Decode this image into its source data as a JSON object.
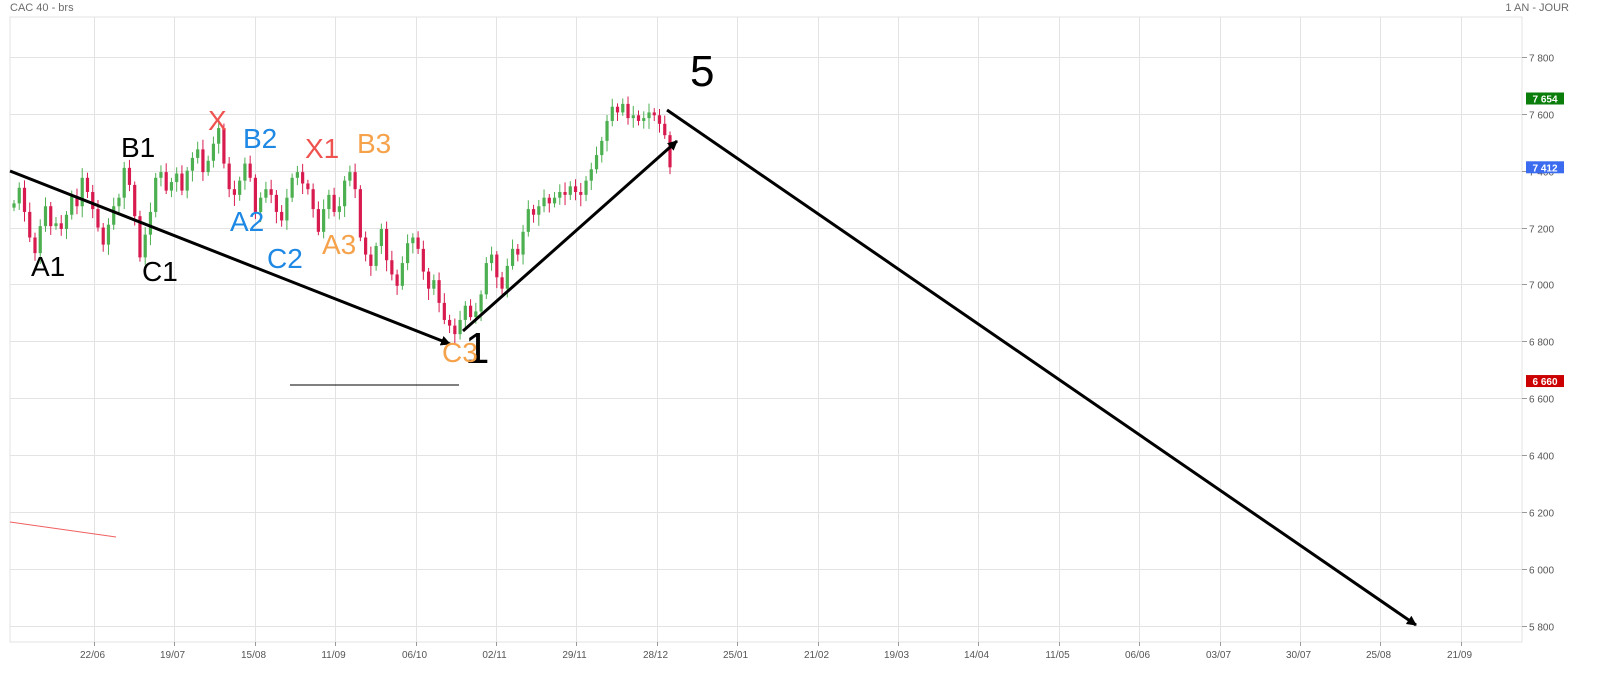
{
  "header": {
    "instrument": "CAC 40 - brs",
    "period": "1 AN - JOUR"
  },
  "chart_data": {
    "type": "candlestick",
    "title": "CAC 40 - brs",
    "period": "1 AN - JOUR",
    "grid": true,
    "ylim": [
      5750,
      7950
    ],
    "y_ticks": [
      5800,
      6000,
      6200,
      6400,
      6600,
      6800,
      7000,
      7200,
      7400,
      7600,
      7800
    ],
    "y_tick_labels": [
      "5 800",
      "6 000",
      "6 200",
      "6 400",
      "6 600",
      "6 800",
      "7 000",
      "7 200",
      "7 400",
      "7 600",
      "7 800"
    ],
    "x_tick_labels": [
      "22/06",
      "19/07",
      "15/08",
      "11/09",
      "06/10",
      "02/11",
      "29/11",
      "28/12",
      "25/01",
      "21/02",
      "19/03",
      "14/04",
      "11/05",
      "06/06",
      "03/07",
      "30/07",
      "25/08",
      "21/09"
    ],
    "price_tags": [
      {
        "label": "7 654",
        "value": 7654,
        "color": "#0a7d0a"
      },
      {
        "label": "7 412",
        "value": 7412,
        "color": "#3b6cf0"
      },
      {
        "label": "6 660",
        "value": 6660,
        "color": "#cc0000"
      }
    ],
    "closes": [
      7285,
      7340,
      7255,
      7165,
      7110,
      7205,
      7275,
      7205,
      7215,
      7195,
      7245,
      7310,
      7275,
      7375,
      7325,
      7265,
      7200,
      7140,
      7210,
      7275,
      7305,
      7410,
      7350,
      7240,
      7095,
      7175,
      7255,
      7375,
      7395,
      7330,
      7360,
      7390,
      7330,
      7400,
      7445,
      7475,
      7395,
      7435,
      7495,
      7550,
      7425,
      7335,
      7315,
      7365,
      7425,
      7375,
      7255,
      7305,
      7335,
      7315,
      7255,
      7225,
      7305,
      7375,
      7395,
      7355,
      7335,
      7265,
      7185,
      7265,
      7315,
      7255,
      7275,
      7365,
      7395,
      7335,
      7165,
      7105,
      7065,
      7135,
      7195,
      7085,
      7035,
      6995,
      7075,
      7145,
      7165,
      7125,
      7045,
      6985,
      7015,
      6935,
      6875,
      6855,
      6825,
      6875,
      6925,
      6885,
      6905,
      6965,
      7075,
      7105,
      7025,
      6985,
      7065,
      7125,
      7105,
      7185,
      7265,
      7245,
      7275,
      7305,
      7285,
      7305,
      7325,
      7315,
      7345,
      7325,
      7315,
      7365,
      7405,
      7455,
      7505,
      7575,
      7625,
      7605,
      7635,
      7585,
      7595,
      7575,
      7585,
      7605,
      7595,
      7565,
      7525,
      7412
    ],
    "patterns": [
      {
        "label": "1",
        "value": 6730,
        "color": "#000000"
      },
      {
        "label": "5",
        "value": 7775,
        "color": "#000000"
      },
      {
        "label": "A1",
        "value": 7035,
        "color": "#000000"
      },
      {
        "label": "B1",
        "value": 7440,
        "color": "#000000"
      },
      {
        "label": "C1",
        "value": 7005,
        "color": "#000000"
      },
      {
        "label": "X",
        "value": 7550,
        "color": "#ef5350"
      },
      {
        "label": "B2",
        "value": 7505,
        "color": "#1e88e5"
      },
      {
        "label": "A2",
        "value": 7220,
        "color": "#1e88e5"
      },
      {
        "label": "C2",
        "value": 7055,
        "color": "#1e88e5"
      },
      {
        "label": "X1",
        "value": 7450,
        "color": "#ef5350"
      },
      {
        "label": "B3",
        "value": 7470,
        "color": "#f5a24b"
      },
      {
        "label": "A3",
        "value": 7105,
        "color": "#f5a24b"
      },
      {
        "label": "C3",
        "value": 6745,
        "color": "#f5a24b"
      }
    ],
    "colors": {
      "up": "#4caf50",
      "down": "#d81b4f",
      "grid": "#e3e3e3",
      "axis": "#555555"
    }
  }
}
